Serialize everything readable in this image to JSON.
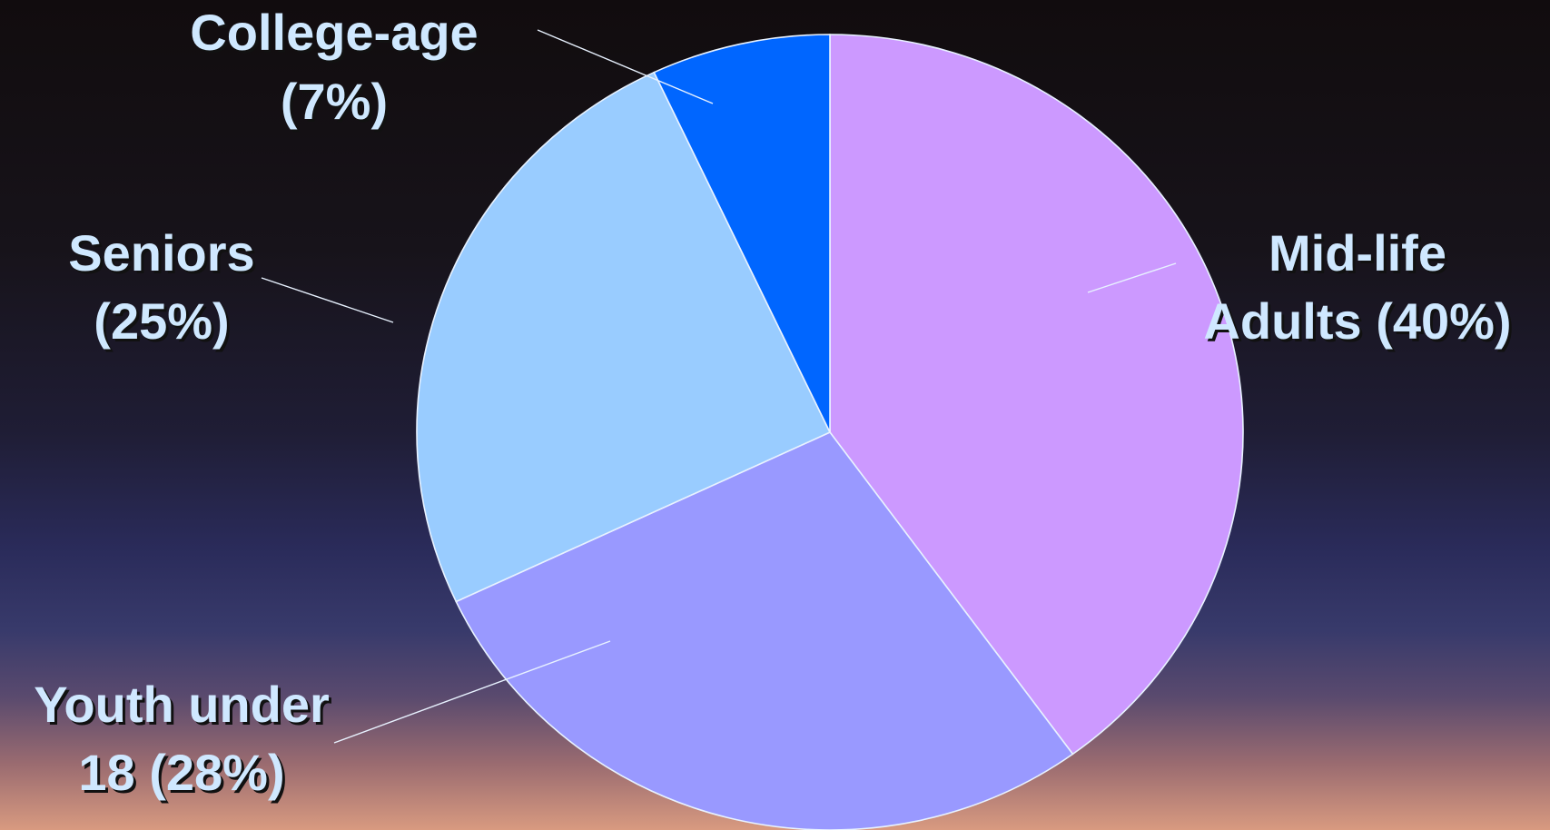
{
  "chart_data": {
    "type": "pie",
    "slices": [
      {
        "label_lines": [
          "Mid-life",
          "Adults (40%)"
        ],
        "value": 40,
        "color": "#cc99ff"
      },
      {
        "label_lines": [
          "Youth under",
          "18 (28%)"
        ],
        "value": 28,
        "color": "#9999ff"
      },
      {
        "label_lines": [
          "Seniors",
          "(25%)"
        ],
        "value": 25,
        "color": "#99ccff"
      },
      {
        "label_lines": [
          "College-age",
          "(7%)"
        ],
        "value": 7,
        "color": "#0066ff"
      }
    ],
    "start_angle_deg": 0,
    "direction": "clockwise",
    "background_colors": [
      "#110c0e",
      "#2a2b5a",
      "#d89a80"
    ]
  }
}
